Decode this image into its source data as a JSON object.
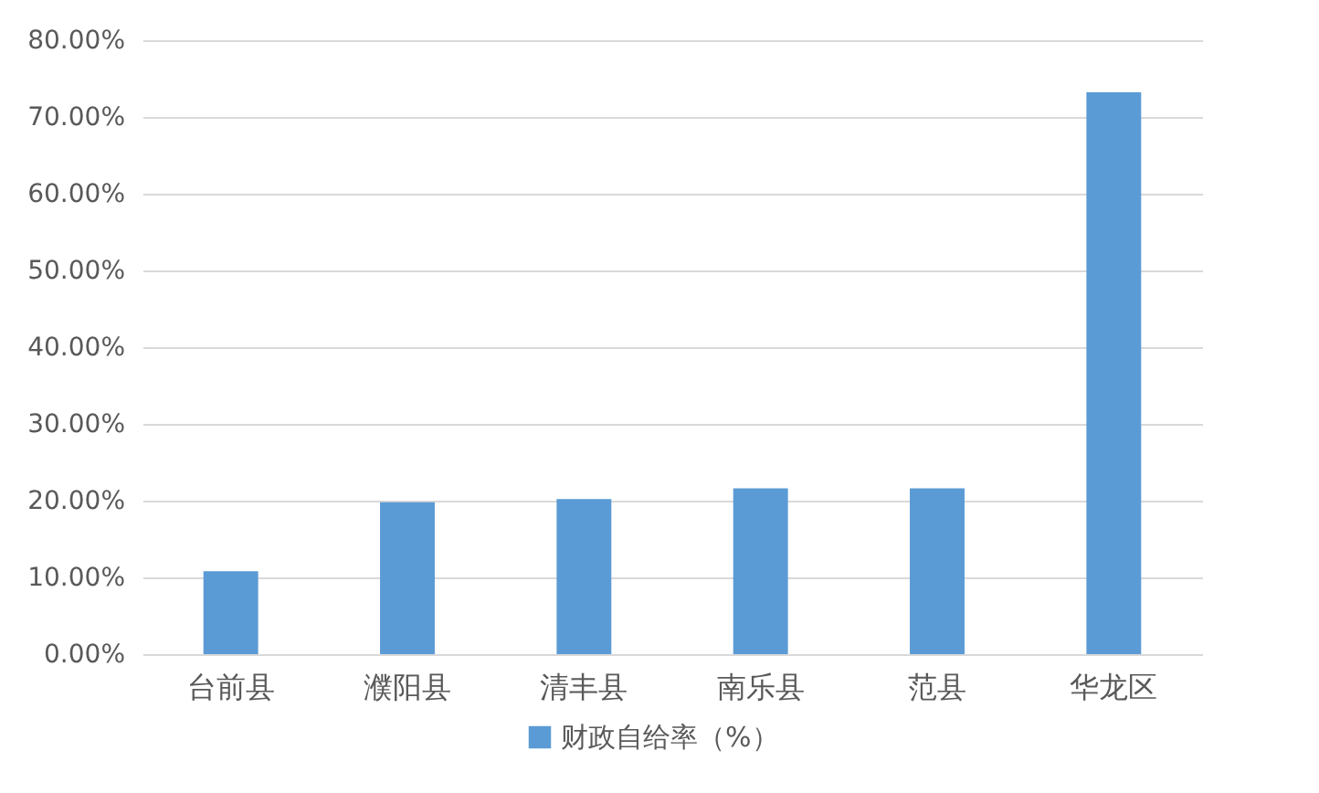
{
  "chart_data": {
    "type": "bar",
    "categories": [
      "台前县",
      "濮阳县",
      "清丰县",
      "南乐县",
      "范县",
      "华龙区"
    ],
    "series": [
      {
        "name": "财政自给率（%）",
        "color": "#5b9bd5",
        "values": [
          10.8,
          19.8,
          20.2,
          21.6,
          21.6,
          73.2
        ]
      }
    ],
    "ylim": [
      0,
      80
    ],
    "yticks": [
      {
        "value": 0,
        "label": "0.00%"
      },
      {
        "value": 10,
        "label": "10.00%"
      },
      {
        "value": 20,
        "label": "20.00%"
      },
      {
        "value": 30,
        "label": "30.00%"
      },
      {
        "value": 40,
        "label": "40.00%"
      },
      {
        "value": 50,
        "label": "50.00%"
      },
      {
        "value": 60,
        "label": "60.00%"
      },
      {
        "value": 70,
        "label": "70.00%"
      },
      {
        "value": 80,
        "label": "80.00%"
      }
    ],
    "grid": "y",
    "legend": "bottom"
  }
}
